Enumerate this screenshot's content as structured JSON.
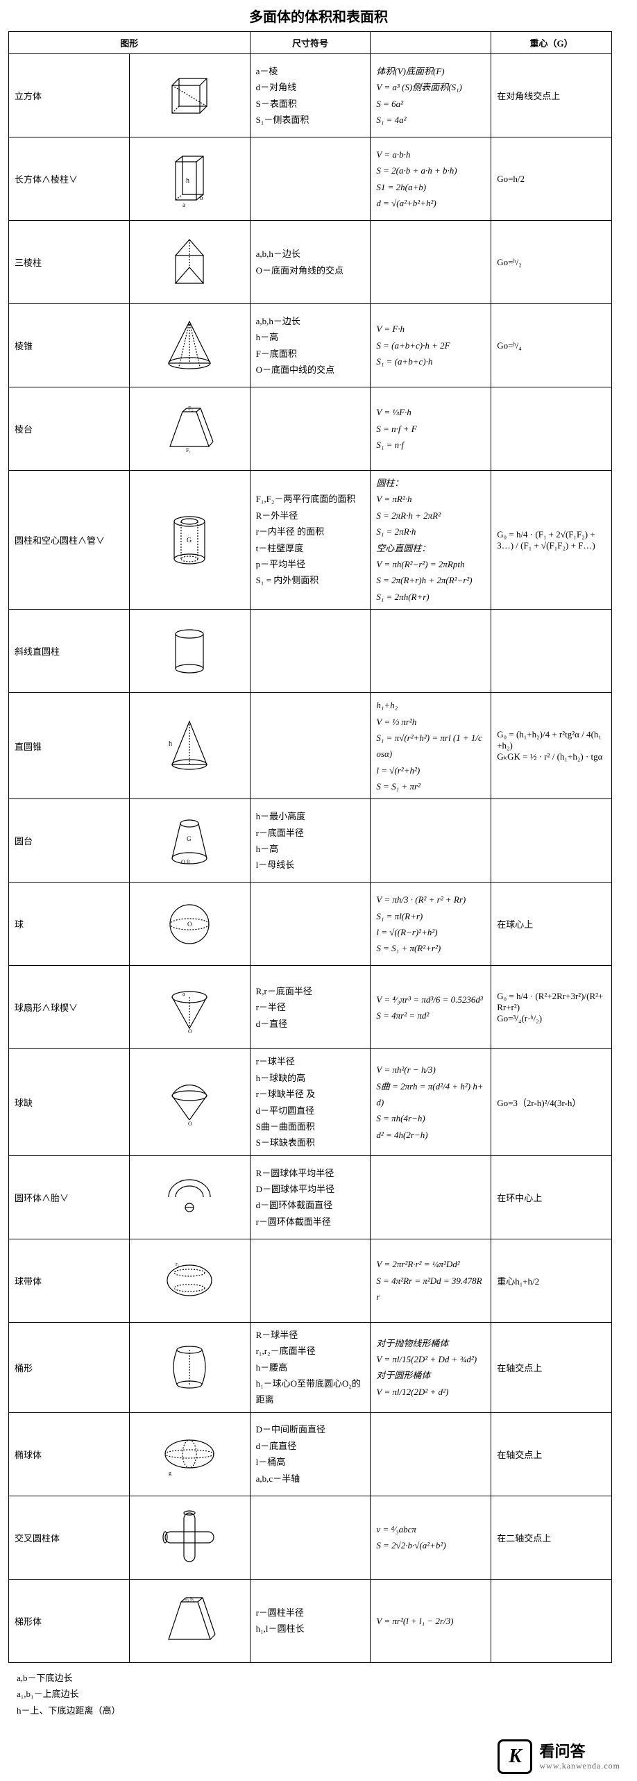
{
  "page": {
    "title": "多面体的体积和表面积",
    "headers": {
      "shape": "图形",
      "symbols": "尺寸符号",
      "formulas": "",
      "centroid": "重心（G）"
    }
  },
  "rows": [
    {
      "name": "立方体",
      "fig": "cube",
      "symbols": "a－棱\nd－对角线\nS－表面积\nS₁－侧表面积",
      "formulas": "体积(V)底面积(F)\nV = a³   (S)侧表面积(S₁)\nS = 6a²\nS₁ = 4a²",
      "centroid": "在对角线交点上"
    },
    {
      "name": "长方体∧棱柱∨",
      "fig": "cuboid",
      "symbols": "",
      "formulas": "V = a·b·h\nS = 2(a·b + a·h + b·h)\nS1 = 2h(a+b)\nd = √(a²+b²+h²)",
      "centroid": "Go=h/2"
    },
    {
      "name": "三棱柱",
      "fig": "triprism",
      "symbols": "a,b,h－边长\nO－底面对角线的交点",
      "formulas": "",
      "centroid": "Go=ʰ/₂"
    },
    {
      "name": "棱锥",
      "fig": "pyramid",
      "symbols": "a,b,h－边长\nh－高\nF－底面积\nO－底面中线的交点",
      "formulas": "V = F·h\nS = (a+b+c)·h + 2F\nS₁ = (a+b+c)·h",
      "centroid": "Go=ʰ/₄"
    },
    {
      "name": "棱台",
      "fig": "frustum-pyr",
      "symbols": "",
      "formulas": "V = ⅓F·h\nS = n·f + F\nS₁ = n·f",
      "centroid": ""
    },
    {
      "name": "圆柱和空心圆柱∧管∨",
      "fig": "cylinder-hollow",
      "symbols": "F₁,F₂－两平行底面的面积\nR－外半径\nr－内半径     的面积\nt－柱壁厚度\np－平均半径\nS₁ = 内外侧面积",
      "formulas": "圆柱：\nV = πR²·h\nS = 2πR·h + 2πR²\nS₁ = 2πR·h\n空心直圆柱：\nV = πh(R²−r²) = 2πRpth\nS = 2π(R+r)h + 2π(R²−r²)\nS₁ = 2πh(R+r)",
      "centroid": "G₀ = h/4 · (F₁ + 2√(F₁F₂) + 3…) / (F₁ + √(F₁F₂) + F…)"
    },
    {
      "name": "斜线直圆柱",
      "fig": "oblique-cyl",
      "symbols": "",
      "formulas": "",
      "centroid": ""
    },
    {
      "name": "直圆锥",
      "fig": "cone",
      "symbols": "",
      "formulas": "        h₁+h₂\nV = ⅓ πr²h\nS₁ = π√(r²+h²) = πrl  (1 + 1/cosα)\nl = √(r²+h²)\nS = S₁ + πr²",
      "centroid": "G₀ = (h₁+h₂)/4 + r²tg²α / 4(h₁+h₂)\nGₖGK = ½ · r² / (h₁+h₂) · tgα"
    },
    {
      "name": "圆台",
      "fig": "frustum-cone",
      "symbols": "h－最小高度\nr－底面半径\nh－高\nl－母线长",
      "formulas": "",
      "centroid": ""
    },
    {
      "name": "球",
      "fig": "sphere",
      "symbols": "",
      "formulas": "V = πh/3 · (R² + r² + Rr)\nS₁ = πl(R+r)\nl = √((R−r)²+h²)\nS = S₁ + π(R²+r²)",
      "centroid": "在球心上"
    },
    {
      "name": "球扇形∧球楔∨",
      "fig": "sphere-sector",
      "symbols": "R,r－底面半径\nr－半径\nd－直径",
      "formulas": "V = ⁴⁄₃πr³ = πd³/6 = 0.5236d³\nS = 4πr² = πd²",
      "centroid": "G₀ = h/4 · (R²+2Rr+3r²)/(R²+Rr+r²)\nGo=³/₄(r·ʰ/₂)"
    },
    {
      "name": "球缺",
      "fig": "sphere-cap",
      "symbols": "r－球半径\nh－球缺的高\nr－球缺半径    及\nd－平切圆直径\nS曲－曲面面积\nS－球缺表面积",
      "formulas": "V = πh²(r − h/3)\nS曲 = 2πrh = π(d²/4 + h²)  h+d)\nS = πh(4r−h)\nd² = 4h(2r−h)",
      "centroid": "Go=3（2r-h)²/4(3r-h）"
    },
    {
      "name": "圆环体∧胎∨",
      "fig": "torus",
      "symbols": "R－圆球体平均半径\nD－圆球体平均半径\nd－圆环体截面直径\nr－圆环体截面半径",
      "formulas": "",
      "centroid": "在环中心上"
    },
    {
      "name": "球带体",
      "fig": "sphere-zone",
      "symbols": "",
      "formulas": "V = 2πr²R·r² = ¼π²Dd²\nS = 4π²Rr = π²Dd = 39.478Rr",
      "centroid": "重心h₁+h/2"
    },
    {
      "name": "桶形",
      "fig": "barrel",
      "symbols": "R－球半径\nr₁,r₂－底面半径\nh－腰高\nh₁－球心O至带底圆心O₂的距离",
      "formulas": "对于抛物线形桶体\nV = πl/15(2D² + Dd + ¾d²)\n对于圆形桶体\nV = πl/12(2D² + d²)",
      "centroid": "在轴交点上"
    },
    {
      "name": "椭球体",
      "fig": "ellipsoid",
      "symbols": "D－中间断面直径\nd－底直径\nl－桶高\na,b,c－半轴",
      "formulas": "",
      "centroid": "在轴交点上"
    },
    {
      "name": "交叉圆柱体",
      "fig": "cross-cyl",
      "symbols": "",
      "formulas": "v = ⁴⁄₃abcπ\nS = 2√2·b·√(a²+b²)",
      "centroid": "在二轴交点上"
    },
    {
      "name": "梯形体",
      "fig": "trapezoid-body",
      "symbols": "r－圆柱半径\nh₁,l－圆柱长",
      "formulas": "V = πr²(l + l₁ − 2r/3)",
      "centroid": ""
    }
  ],
  "footer_notes": "a,b－下底边长\na₁,b₁－上底边长\nh－上、下底边距离（高）",
  "logo": {
    "icon_letter": "K",
    "cn": "看问答",
    "url": "www.kanwenda.com"
  },
  "colors": {
    "bg": "#ffffff",
    "border": "#000000",
    "text": "#000000",
    "url_text": "#666666"
  }
}
